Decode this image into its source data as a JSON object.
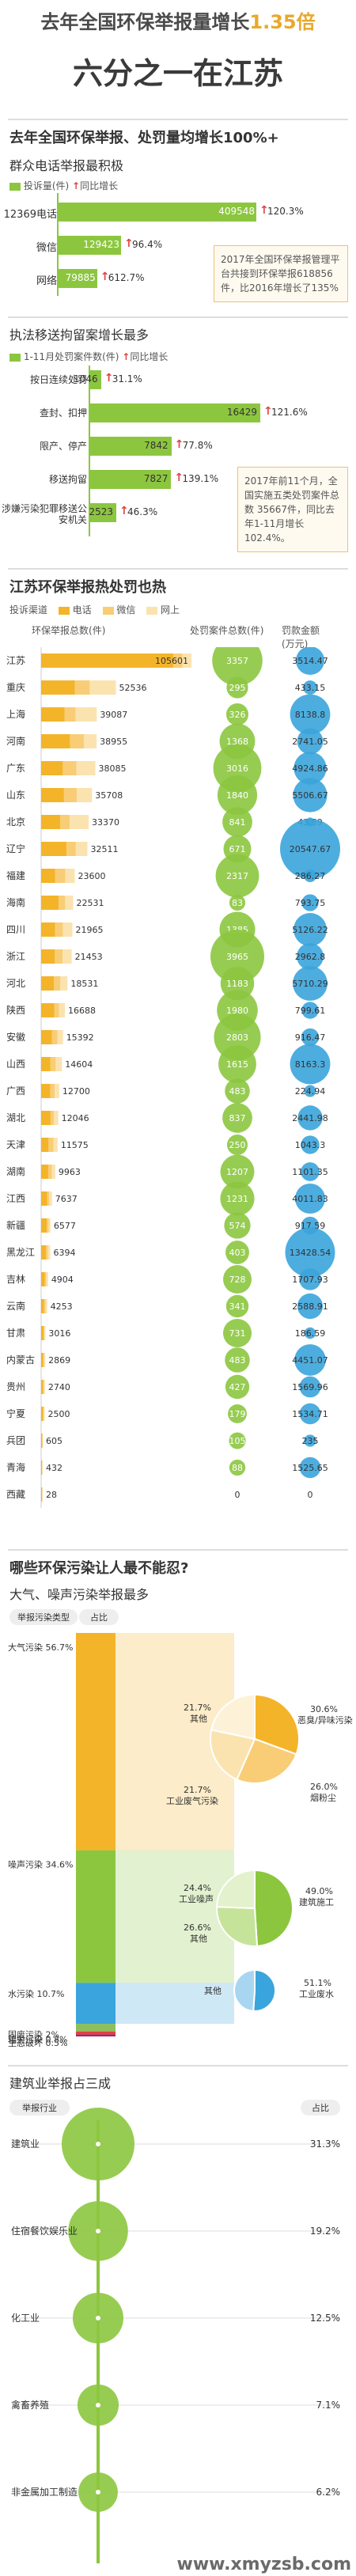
{
  "header": {
    "line1_a": "去年全国环保举报量增长",
    "line1_b": "1.35倍",
    "line2": "六分之一在江苏"
  },
  "section1": {
    "title": "去年全国环保举报、处罚量均增长100%+",
    "sub": "群众电话举报最积极",
    "legend_count": "投诉量",
    "legend_count_unit": "(件)",
    "legend_growth": "同比增长",
    "note": "2017年全国环保举报管理平台共接到环保举报618856件，比2016年增长了135%"
  },
  "section2": {
    "sub": "执法移送拘留案增长最多",
    "legend": "1-11月处罚案件数",
    "legend_unit": "(件)",
    "legend_growth": "同比增长",
    "note": "2017年前11个月，全国实施五类处罚案件总数 35667件，同比去年1-11月增长102.4%。"
  },
  "section3": {
    "title": "江苏环保举报热处罚也热",
    "legend_title": "投诉渠道",
    "channels": [
      "电话",
      "微信",
      "网上"
    ],
    "col1": "环保举报总数",
    "col1_unit": "(件)",
    "col2": "处罚案件总数",
    "col2_unit": "(件)",
    "col3": "罚款金额",
    "col3_unit": "(万元)"
  },
  "section4": {
    "title": "哪些环保污染让人最不能忍?",
    "sub": "大气、噪声污染举报最多",
    "col_type": "举报污染类型",
    "col_share": "占比",
    "other": "其他",
    "air_breakdown_labels": [
      "其他",
      "工业废气污染",
      "恶臭/异味污染",
      "烟粉尘"
    ],
    "noise_breakdown_labels": [
      "工业噪声",
      "其他",
      "建筑施工"
    ],
    "water_breakdown_labels": [
      "其他",
      "工业废水"
    ]
  },
  "section5": {
    "sub": "建筑业举报占三成",
    "col_type": "举报行业",
    "col_share": "占比"
  },
  "watermark": "www.xmyzsb.com",
  "colors": {
    "green": "#8cc63f",
    "orange": "#f4b429",
    "light_orange": "#f8cd76",
    "pale_orange": "#fbe3b0",
    "blue": "#3aa4dc",
    "red": "#e2413e",
    "purple": "#a0247a"
  },
  "chart_data": [
    {
      "type": "bar",
      "categories": [
        "12369电话",
        "微信",
        "网络"
      ],
      "values": [
        409548,
        129423,
        79885
      ],
      "growth": [
        "120.3%",
        "96.4%",
        "612.7%"
      ],
      "value_labels": [
        "409548",
        "129423",
        "79885"
      ]
    },
    {
      "type": "bar",
      "categories": [
        "按日连续处罚",
        "查封、扣押",
        "限产、停产",
        "移送拘留",
        "涉嫌污染犯罪移送公安机关"
      ],
      "values": [
        1046,
        16429,
        7842,
        7827,
        2523
      ],
      "growth": [
        "31.1%",
        "121.6%",
        "77.8%",
        "139.1%",
        "46.3%"
      ],
      "value_labels": [
        "1046",
        "16429",
        "7842",
        "7827",
        "2523"
      ]
    },
    {
      "type": "table",
      "provinces": [
        "江苏",
        "重庆",
        "上海",
        "河南",
        "广东",
        "山东",
        "北京",
        "辽宁",
        "福建",
        "海南",
        "四川",
        "浙江",
        "河北",
        "陕西",
        "安徽",
        "山西",
        "广西",
        "湖北",
        "天津",
        "湖南",
        "江西",
        "新疆",
        "黑龙江",
        "吉林",
        "云南",
        "甘肃",
        "内蒙古",
        "贵州",
        "宁夏",
        "兵团",
        "青海",
        "西藏"
      ],
      "complaints": [
        105601,
        52536,
        39087,
        38955,
        38085,
        35708,
        33370,
        32511,
        23600,
        22531,
        21965,
        21453,
        18531,
        16688,
        15392,
        14604,
        12700,
        12046,
        11575,
        9963,
        7637,
        6577,
        6394,
        4904,
        4253,
        3016,
        2869,
        2740,
        2500,
        605,
        432,
        28
      ],
      "punish_cases": [
        3357,
        295,
        326,
        1368,
        3016,
        1840,
        841,
        671,
        2317,
        83,
        1385,
        3965,
        1183,
        1980,
        2803,
        1615,
        483,
        837,
        250,
        1207,
        1231,
        574,
        403,
        728,
        341,
        731,
        483,
        427,
        179,
        105,
        88,
        0
      ],
      "fines": [
        "3514.47",
        "433.15",
        "8138.8",
        "2741.05",
        "4924.86",
        "5506.67",
        "43.59",
        "20547.67",
        "286.27",
        "793.75",
        "5126.22",
        "2962.8",
        "5710.29",
        "799.61",
        "916.47",
        "8163.3",
        "224.94",
        "2441.98",
        "1043.3",
        "1101.35",
        "4011.83",
        "917.59",
        "13428.54",
        "1707.93",
        "2588.91",
        "186.59",
        "4451.07",
        "1569.96",
        "1534.71",
        "235",
        "1525.65",
        "0"
      ],
      "fines_num": [
        3514.47,
        433.15,
        8138.8,
        2741.05,
        4924.86,
        5506.67,
        43.59,
        20547.67,
        286.27,
        793.75,
        5126.22,
        2962.8,
        5710.29,
        799.61,
        916.47,
        8163.3,
        224.94,
        2441.98,
        1043.3,
        1101.35,
        4011.83,
        917.59,
        13428.54,
        1707.93,
        2588.91,
        186.59,
        4451.07,
        1569.96,
        1534.71,
        235,
        1525.65,
        0
      ],
      "channel_share_tel": [
        0.88,
        0.45,
        0.42,
        0.52,
        0.4,
        0.45,
        0.4,
        0.55,
        0.42,
        0.55,
        0.45,
        0.45,
        0.48,
        0.55,
        0.5,
        0.45,
        0.5,
        0.55,
        0.45,
        0.5,
        0.55,
        0.6,
        0.55,
        0.55,
        0.5,
        0.6,
        0.55,
        0.55,
        0.55,
        0.8,
        0.6,
        0.6
      ],
      "channel_share_wx": [
        0.06,
        0.2,
        0.2,
        0.25,
        0.25,
        0.25,
        0.2,
        0.2,
        0.3,
        0.2,
        0.25,
        0.25,
        0.25,
        0.2,
        0.25,
        0.25,
        0.25,
        0.2,
        0.3,
        0.25,
        0.2,
        0.2,
        0.2,
        0.2,
        0.25,
        0.2,
        0.2,
        0.2,
        0.2,
        0.1,
        0.2,
        0.2
      ]
    },
    {
      "type": "bar",
      "categories": [
        "大气污染",
        "噪声污染",
        "水污染",
        "固废污染",
        "辐射污染",
        "生态破坏"
      ],
      "values": [
        56.7,
        34.6,
        10.7,
        2,
        0.8,
        0.5
      ],
      "value_labels": [
        "56.7%",
        "34.6%",
        "10.7%",
        "2%",
        "0.8%",
        "0.5%"
      ]
    },
    {
      "type": "pie",
      "name": "大气污染",
      "labels": [
        "恶臭/异味污染",
        "烟粉尘",
        "工业废气污染",
        "其他"
      ],
      "values": [
        30.6,
        26.0,
        21.7,
        21.7
      ],
      "value_labels": [
        "30.6%",
        "26.0%",
        "21.7%",
        "21.7%"
      ]
    },
    {
      "type": "pie",
      "name": "噪声污染",
      "labels": [
        "建筑施工",
        "其他",
        "工业噪声"
      ],
      "values": [
        49.0,
        26.6,
        24.4
      ],
      "value_labels": [
        "49.0%",
        "26.6%",
        "24.4%"
      ]
    },
    {
      "type": "pie",
      "name": "水污染",
      "labels": [
        "工业废水",
        "其他"
      ],
      "values": [
        51.1,
        48.9
      ],
      "value_labels": [
        "51.1%",
        "其他"
      ]
    },
    {
      "type": "bar",
      "categories": [
        "建筑业",
        "住宿餐饮娱乐业",
        "化工业",
        "禽畜养殖",
        "非金属加工制造"
      ],
      "values": [
        31.3,
        19.2,
        12.5,
        7.1,
        6.2
      ],
      "value_labels": [
        "31.3%",
        "19.2%",
        "12.5%",
        "7.1%",
        "6.2%"
      ]
    }
  ]
}
